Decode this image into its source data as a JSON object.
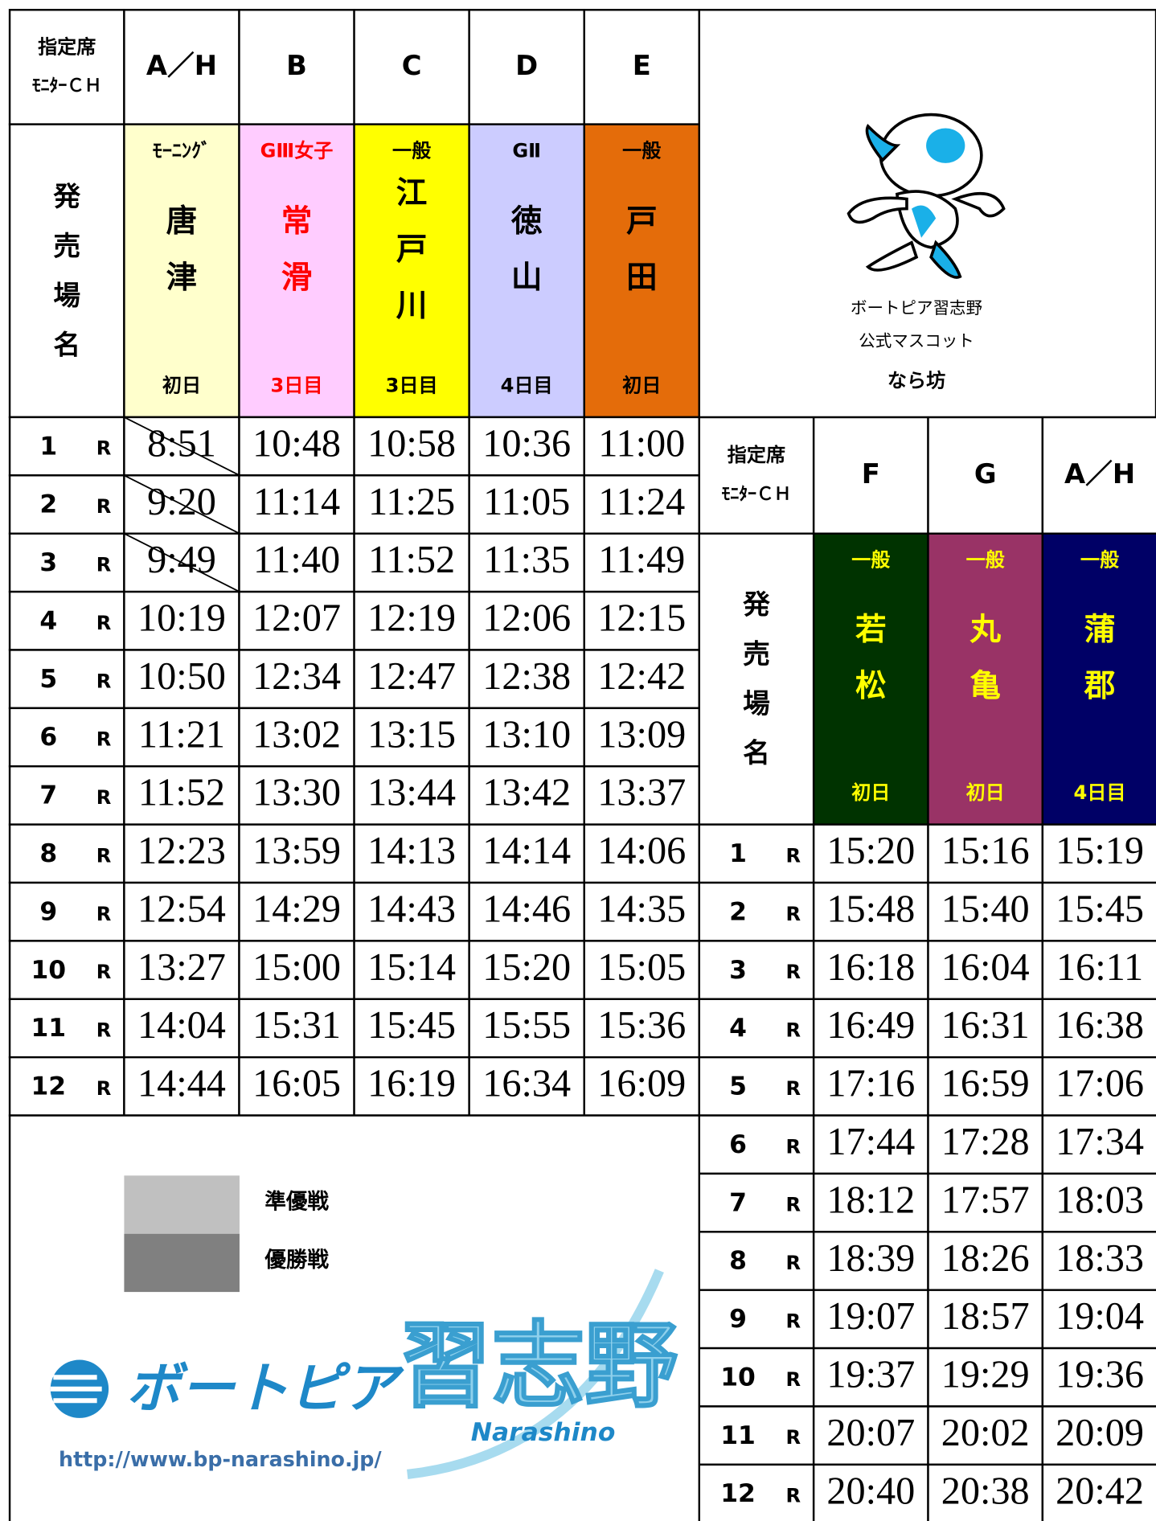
{
  "left_table": {
    "corner": [
      "指定席",
      "ﾓﾆﾀｰＣＨ"
    ],
    "sales_label": [
      "発",
      "売",
      "場",
      "名"
    ],
    "race_suffix": "R",
    "columns": [
      {
        "channel": "A／H",
        "grade": "ﾓｰﾆﾝｸﾞ",
        "venue": [
          "唐",
          "津"
        ],
        "day": "初日",
        "bg": "#ffffcc",
        "text_color": "#000000"
      },
      {
        "channel": "B",
        "grade": "GⅢ女子",
        "venue": [
          "常",
          "滑"
        ],
        "day": "3日目",
        "bg": "#ffccff",
        "text_color": "#ff0000"
      },
      {
        "channel": "C",
        "grade": "一般",
        "venue": [
          "江",
          "戸",
          "川"
        ],
        "day": "3日目",
        "bg": "#ffff00",
        "text_color": "#000000"
      },
      {
        "channel": "D",
        "grade": "GⅡ",
        "venue": [
          "徳",
          "山"
        ],
        "day": "4日目",
        "bg": "#ccccff",
        "text_color": "#000000"
      },
      {
        "channel": "E",
        "grade": "一般",
        "venue": [
          "戸",
          "田"
        ],
        "day": "初日",
        "bg": "#e46c0a",
        "text_color": "#000000"
      }
    ],
    "races": [
      {
        "no": "1",
        "times": [
          "8:51",
          "10:48",
          "10:58",
          "10:36",
          "11:00"
        ]
      },
      {
        "no": "2",
        "times": [
          "9:20",
          "11:14",
          "11:25",
          "11:05",
          "11:24"
        ]
      },
      {
        "no": "3",
        "times": [
          "9:49",
          "11:40",
          "11:52",
          "11:35",
          "11:49"
        ]
      },
      {
        "no": "4",
        "times": [
          "10:19",
          "12:07",
          "12:19",
          "12:06",
          "12:15"
        ]
      },
      {
        "no": "5",
        "times": [
          "10:50",
          "12:34",
          "12:47",
          "12:38",
          "12:42"
        ]
      },
      {
        "no": "6",
        "times": [
          "11:21",
          "13:02",
          "13:15",
          "13:10",
          "13:09"
        ]
      },
      {
        "no": "7",
        "times": [
          "11:52",
          "13:30",
          "13:44",
          "13:42",
          "13:37"
        ]
      },
      {
        "no": "8",
        "times": [
          "12:23",
          "13:59",
          "14:13",
          "14:14",
          "14:06"
        ]
      },
      {
        "no": "9",
        "times": [
          "12:54",
          "14:29",
          "14:43",
          "14:46",
          "14:35"
        ]
      },
      {
        "no": "10",
        "times": [
          "13:27",
          "15:00",
          "15:14",
          "15:20",
          "15:05"
        ]
      },
      {
        "no": "11",
        "times": [
          "14:04",
          "15:31",
          "15:45",
          "15:55",
          "15:36"
        ]
      },
      {
        "no": "12",
        "times": [
          "14:44",
          "16:05",
          "16:19",
          "16:34",
          "16:09"
        ]
      }
    ]
  },
  "right_table": {
    "corner": [
      "指定席",
      "ﾓﾆﾀｰＣＨ"
    ],
    "sales_label": [
      "発",
      "売",
      "場",
      "名"
    ],
    "race_suffix": "R",
    "columns": [
      {
        "channel": "F",
        "grade": "一般",
        "venue": [
          "若",
          "松"
        ],
        "day": "初日",
        "bg": "#003300",
        "text_color": "#ffff00"
      },
      {
        "channel": "G",
        "grade": "一般",
        "venue": [
          "丸",
          "亀"
        ],
        "day": "初日",
        "bg": "#993366",
        "text_color": "#ffff00"
      },
      {
        "channel": "A／H",
        "grade": "一般",
        "venue": [
          "蒲",
          "郡"
        ],
        "day": "4日目",
        "bg": "#000066",
        "text_color": "#ffff00"
      }
    ],
    "races": [
      {
        "no": "1",
        "times": [
          "15:20",
          "15:16",
          "15:19"
        ]
      },
      {
        "no": "2",
        "times": [
          "15:48",
          "15:40",
          "15:45"
        ]
      },
      {
        "no": "3",
        "times": [
          "16:18",
          "16:04",
          "16:11"
        ]
      },
      {
        "no": "4",
        "times": [
          "16:49",
          "16:31",
          "16:38"
        ]
      },
      {
        "no": "5",
        "times": [
          "17:16",
          "16:59",
          "17:06"
        ]
      },
      {
        "no": "6",
        "times": [
          "17:44",
          "17:28",
          "17:34"
        ]
      },
      {
        "no": "7",
        "times": [
          "18:12",
          "17:57",
          "18:03"
        ]
      },
      {
        "no": "8",
        "times": [
          "18:39",
          "18:26",
          "18:33"
        ]
      },
      {
        "no": "9",
        "times": [
          "19:07",
          "18:57",
          "19:04"
        ]
      },
      {
        "no": "10",
        "times": [
          "19:37",
          "19:29",
          "19:36"
        ]
      },
      {
        "no": "11",
        "times": [
          "20:07",
          "20:02",
          "20:09"
        ]
      },
      {
        "no": "12",
        "times": [
          "20:40",
          "20:38",
          "20:42"
        ]
      }
    ]
  },
  "mascot": {
    "caption": [
      "ボートピア習志野",
      "公式マスコット",
      "なら坊"
    ]
  },
  "legend": [
    {
      "label": "準優戦",
      "color": "#c0c0c0"
    },
    {
      "label": "優勝戦",
      "color": "#808080"
    }
  ],
  "logo": {
    "brand": "ボートピア",
    "name": "習志野",
    "romaji": "Narashino",
    "url": "http://www.bp-narashino.jp/"
  }
}
